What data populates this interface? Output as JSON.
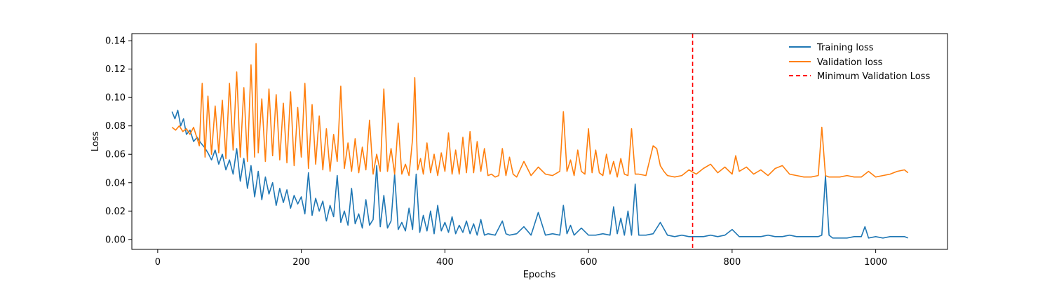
{
  "chart_data": {
    "type": "line",
    "title": "",
    "xlabel": "Epochs",
    "ylabel": "Loss",
    "xlim": [
      -36,
      1100
    ],
    "ylim": [
      -0.007,
      0.145
    ],
    "xticks": [
      0,
      200,
      400,
      600,
      800,
      1000
    ],
    "yticks": [
      0.0,
      0.02,
      0.04,
      0.06,
      0.08,
      0.1,
      0.12,
      0.14
    ],
    "xtick_labels": [
      "0",
      "200",
      "400",
      "600",
      "800",
      "1000"
    ],
    "ytick_labels": [
      "0.00",
      "0.02",
      "0.04",
      "0.06",
      "0.08",
      "0.10",
      "0.12",
      "0.14"
    ],
    "grid": false,
    "legend_position": "top-right",
    "legend": [
      "Training loss",
      "Validation loss",
      "Minimum Validation Loss"
    ],
    "colors": {
      "training": "#1f77b4",
      "validation": "#ff7f0e",
      "min_line": "#ff0000"
    },
    "min_validation_epoch": 745,
    "series": [
      {
        "name": "Training loss",
        "color": "#1f77b4",
        "x": [
          20,
          24,
          28,
          32,
          36,
          40,
          45,
          50,
          55,
          60,
          65,
          70,
          75,
          80,
          85,
          90,
          95,
          100,
          105,
          110,
          115,
          120,
          125,
          130,
          135,
          140,
          145,
          150,
          155,
          160,
          165,
          170,
          175,
          180,
          185,
          190,
          195,
          200,
          205,
          210,
          215,
          220,
          225,
          230,
          235,
          240,
          245,
          250,
          255,
          260,
          265,
          270,
          275,
          280,
          285,
          290,
          295,
          300,
          305,
          310,
          315,
          320,
          325,
          330,
          335,
          340,
          345,
          350,
          355,
          360,
          365,
          370,
          375,
          380,
          385,
          390,
          395,
          400,
          405,
          410,
          415,
          420,
          425,
          430,
          435,
          440,
          445,
          450,
          455,
          460,
          470,
          480,
          485,
          490,
          500,
          510,
          520,
          530,
          540,
          550,
          560,
          565,
          570,
          575,
          580,
          590,
          600,
          610,
          620,
          630,
          635,
          640,
          645,
          650,
          655,
          660,
          665,
          670,
          680,
          690,
          700,
          710,
          720,
          730,
          740,
          750,
          760,
          770,
          780,
          790,
          800,
          810,
          820,
          830,
          840,
          850,
          860,
          870,
          880,
          890,
          900,
          910,
          920,
          925,
          930,
          935,
          940,
          950,
          960,
          970,
          980,
          985,
          990,
          1000,
          1010,
          1020,
          1030,
          1040,
          1045
        ],
        "values": [
          0.09,
          0.085,
          0.091,
          0.08,
          0.085,
          0.074,
          0.077,
          0.069,
          0.072,
          0.068,
          0.065,
          0.061,
          0.056,
          0.063,
          0.053,
          0.06,
          0.049,
          0.056,
          0.046,
          0.064,
          0.041,
          0.057,
          0.036,
          0.052,
          0.03,
          0.048,
          0.028,
          0.044,
          0.032,
          0.04,
          0.024,
          0.036,
          0.026,
          0.035,
          0.022,
          0.031,
          0.025,
          0.03,
          0.018,
          0.047,
          0.017,
          0.029,
          0.02,
          0.027,
          0.013,
          0.024,
          0.016,
          0.045,
          0.012,
          0.02,
          0.01,
          0.036,
          0.011,
          0.018,
          0.008,
          0.028,
          0.01,
          0.014,
          0.052,
          0.009,
          0.031,
          0.008,
          0.013,
          0.046,
          0.007,
          0.012,
          0.006,
          0.022,
          0.007,
          0.046,
          0.005,
          0.017,
          0.006,
          0.02,
          0.004,
          0.024,
          0.006,
          0.012,
          0.005,
          0.016,
          0.004,
          0.01,
          0.005,
          0.013,
          0.004,
          0.011,
          0.003,
          0.014,
          0.003,
          0.004,
          0.003,
          0.013,
          0.004,
          0.003,
          0.004,
          0.009,
          0.003,
          0.019,
          0.003,
          0.004,
          0.003,
          0.024,
          0.004,
          0.01,
          0.003,
          0.008,
          0.003,
          0.003,
          0.004,
          0.003,
          0.023,
          0.004,
          0.015,
          0.003,
          0.02,
          0.003,
          0.039,
          0.003,
          0.003,
          0.004,
          0.012,
          0.003,
          0.002,
          0.003,
          0.002,
          0.002,
          0.002,
          0.003,
          0.002,
          0.003,
          0.007,
          0.002,
          0.002,
          0.002,
          0.002,
          0.003,
          0.002,
          0.002,
          0.003,
          0.002,
          0.002,
          0.002,
          0.002,
          0.003,
          0.045,
          0.003,
          0.001,
          0.001,
          0.001,
          0.002,
          0.002,
          0.009,
          0.001,
          0.002,
          0.001,
          0.002,
          0.002,
          0.002,
          0.001
        ]
      },
      {
        "name": "Validation loss",
        "color": "#ff7f0e",
        "x": [
          20,
          25,
          30,
          35,
          40,
          45,
          50,
          55,
          58,
          62,
          66,
          70,
          75,
          80,
          85,
          90,
          95,
          100,
          105,
          110,
          115,
          120,
          125,
          130,
          135,
          137,
          140,
          145,
          150,
          155,
          160,
          165,
          170,
          175,
          180,
          185,
          190,
          195,
          200,
          205,
          210,
          215,
          220,
          225,
          230,
          235,
          240,
          245,
          250,
          255,
          260,
          265,
          270,
          275,
          280,
          285,
          290,
          295,
          300,
          305,
          310,
          315,
          320,
          325,
          330,
          335,
          340,
          345,
          350,
          355,
          358,
          362,
          366,
          370,
          375,
          380,
          385,
          390,
          395,
          400,
          405,
          410,
          415,
          420,
          425,
          430,
          435,
          440,
          445,
          450,
          455,
          460,
          465,
          470,
          475,
          480,
          485,
          490,
          495,
          500,
          510,
          520,
          530,
          540,
          550,
          560,
          565,
          570,
          575,
          580,
          585,
          590,
          595,
          600,
          605,
          610,
          615,
          620,
          625,
          630,
          635,
          640,
          645,
          650,
          655,
          660,
          665,
          670,
          680,
          690,
          695,
          700,
          705,
          710,
          720,
          730,
          740,
          750,
          760,
          770,
          780,
          790,
          800,
          805,
          810,
          820,
          830,
          840,
          850,
          860,
          870,
          880,
          890,
          900,
          910,
          920,
          925,
          930,
          935,
          940,
          950,
          960,
          970,
          980,
          990,
          1000,
          1010,
          1020,
          1030,
          1040,
          1045
        ],
        "values": [
          0.079,
          0.077,
          0.08,
          0.076,
          0.078,
          0.074,
          0.079,
          0.071,
          0.066,
          0.11,
          0.058,
          0.101,
          0.06,
          0.094,
          0.061,
          0.098,
          0.057,
          0.11,
          0.063,
          0.118,
          0.058,
          0.107,
          0.055,
          0.123,
          0.058,
          0.138,
          0.061,
          0.099,
          0.055,
          0.106,
          0.059,
          0.102,
          0.056,
          0.096,
          0.054,
          0.104,
          0.052,
          0.093,
          0.058,
          0.11,
          0.05,
          0.095,
          0.053,
          0.087,
          0.049,
          0.078,
          0.048,
          0.074,
          0.055,
          0.108,
          0.05,
          0.068,
          0.048,
          0.071,
          0.047,
          0.065,
          0.049,
          0.084,
          0.046,
          0.06,
          0.048,
          0.106,
          0.048,
          0.064,
          0.046,
          0.082,
          0.046,
          0.053,
          0.045,
          0.071,
          0.114,
          0.049,
          0.057,
          0.046,
          0.068,
          0.047,
          0.06,
          0.045,
          0.061,
          0.048,
          0.075,
          0.046,
          0.063,
          0.046,
          0.072,
          0.047,
          0.076,
          0.047,
          0.069,
          0.048,
          0.064,
          0.045,
          0.046,
          0.044,
          0.045,
          0.064,
          0.045,
          0.058,
          0.046,
          0.044,
          0.055,
          0.045,
          0.051,
          0.046,
          0.045,
          0.048,
          0.09,
          0.048,
          0.056,
          0.045,
          0.063,
          0.048,
          0.046,
          0.078,
          0.047,
          0.063,
          0.047,
          0.045,
          0.06,
          0.046,
          0.055,
          0.044,
          0.057,
          0.046,
          0.045,
          0.078,
          0.046,
          0.046,
          0.045,
          0.066,
          0.064,
          0.052,
          0.048,
          0.045,
          0.044,
          0.045,
          0.049,
          0.046,
          0.05,
          0.053,
          0.047,
          0.051,
          0.046,
          0.059,
          0.048,
          0.051,
          0.046,
          0.049,
          0.045,
          0.05,
          0.052,
          0.046,
          0.045,
          0.044,
          0.044,
          0.045,
          0.079,
          0.045,
          0.044,
          0.044,
          0.044,
          0.045,
          0.044,
          0.044,
          0.048,
          0.044,
          0.045,
          0.046,
          0.048,
          0.049,
          0.047
        ]
      }
    ]
  }
}
